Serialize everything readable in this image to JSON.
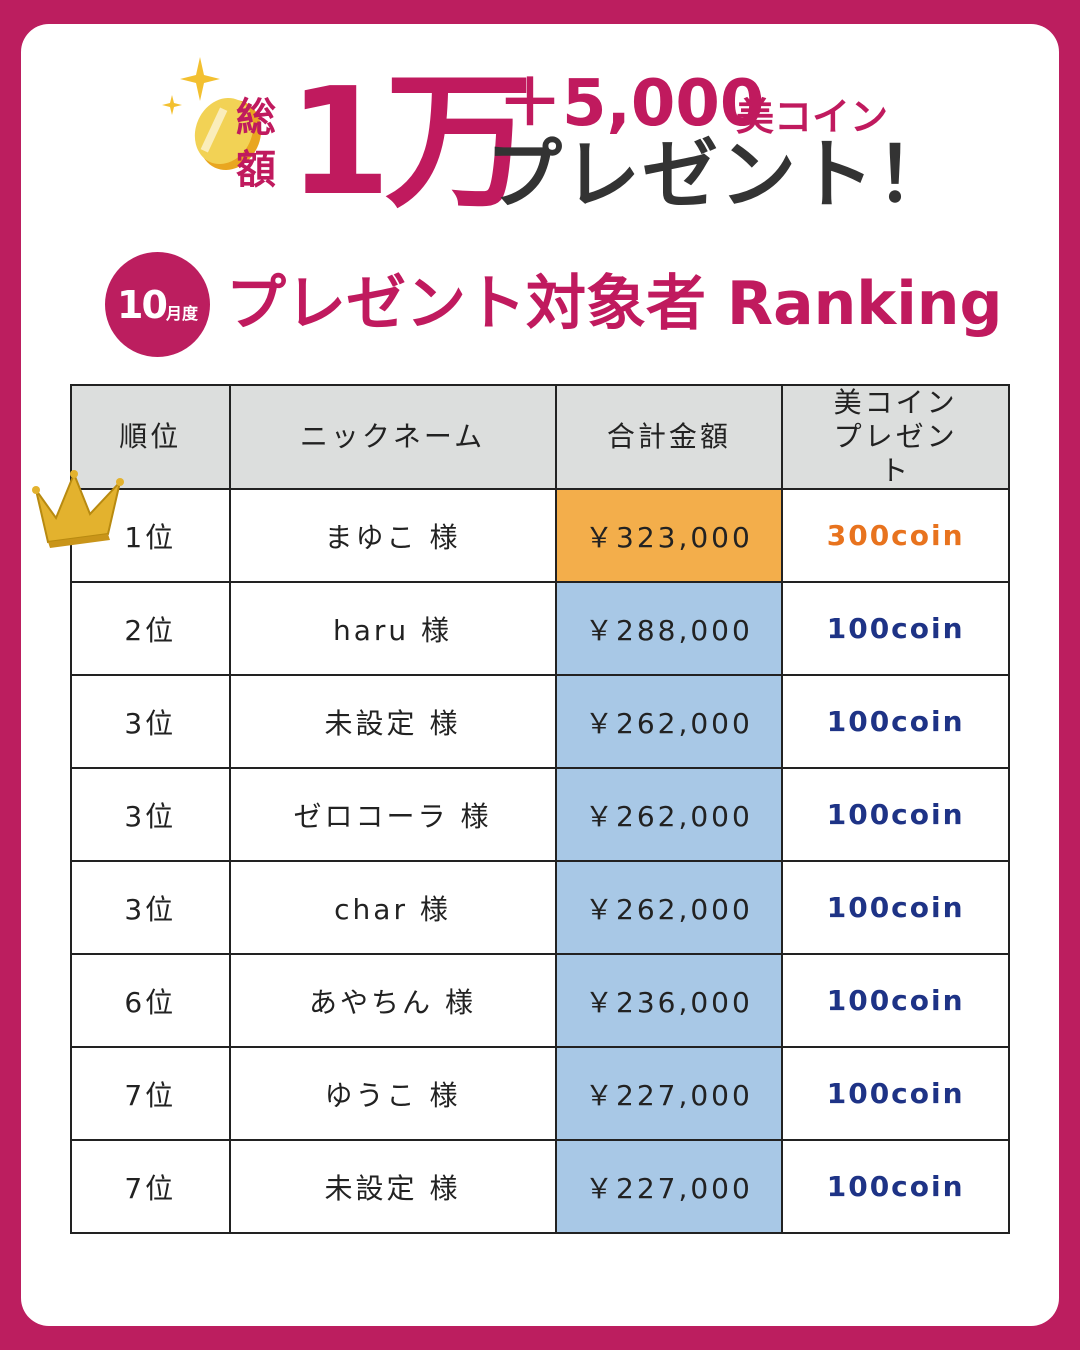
{
  "header": {
    "total_label": "総額",
    "amount_big": "1万",
    "plus_amount": "＋5,000",
    "coin_unit": "美コイン",
    "present_text": "プレゼント！"
  },
  "ranking": {
    "month_number": "10",
    "month_suffix": "月度",
    "title": "プレゼント対象者 Ranking"
  },
  "table": {
    "headers": [
      "順位",
      "ニックネーム",
      "合計金額",
      "美コインプレゼント"
    ],
    "rows": [
      {
        "rank": "1位",
        "name": "まゆこ 様",
        "amount": "￥323,000",
        "coins": "300coin"
      },
      {
        "rank": "2位",
        "name": "haru 様",
        "amount": "￥288,000",
        "coins": "100coin"
      },
      {
        "rank": "3位",
        "name": "未設定 様",
        "amount": "￥262,000",
        "coins": "100coin"
      },
      {
        "rank": "3位",
        "name": "ゼロコーラ 様",
        "amount": "￥262,000",
        "coins": "100coin"
      },
      {
        "rank": "3位",
        "name": "char 様",
        "amount": "￥262,000",
        "coins": "100coin"
      },
      {
        "rank": "6位",
        "name": "あやちん 様",
        "amount": "￥236,000",
        "coins": "100coin"
      },
      {
        "rank": "7位",
        "name": "ゆうこ 様",
        "amount": "￥227,000",
        "coins": "100coin"
      },
      {
        "rank": "7位",
        "name": "未設定 様",
        "amount": "￥227,000",
        "coins": "100coin"
      }
    ]
  },
  "colors": {
    "frame": "#BC1E5F",
    "header_bg": "#DCDEDD",
    "first_amount_bg": "#F3AE4B",
    "amount_bg": "#A8C8E6",
    "first_coin": "#E8731E",
    "coin": "#1E3386"
  }
}
